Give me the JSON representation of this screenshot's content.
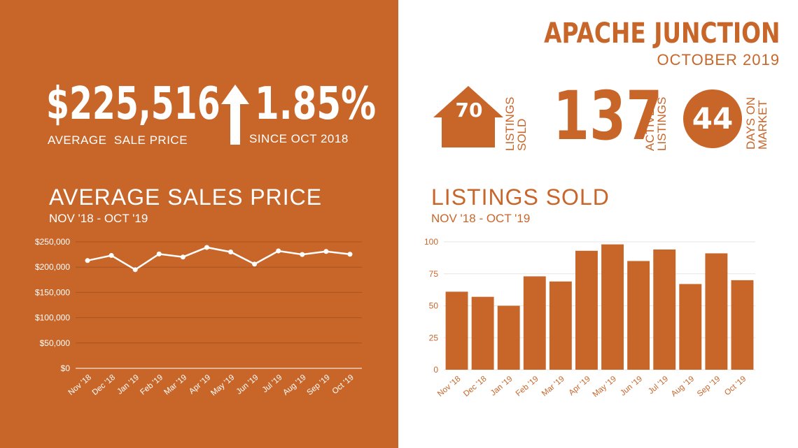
{
  "header": {
    "city": "APACHE JUNCTION",
    "period": "OCTOBER 2019"
  },
  "stats": {
    "avg_price_value": "$225,516",
    "avg_price_label": "AVERAGE  SALE PRICE",
    "change_value": "1.85%",
    "change_label": "SINCE OCT 2018",
    "change_direction": "up",
    "listings_sold_value": "70",
    "listings_sold_label_1": "LISTINGS",
    "listings_sold_label_2": "SOLD",
    "active_listings_value": "137",
    "active_listings_label_1": "ACTIVE",
    "active_listings_label_2": "LISTINGS",
    "days_on_market_value": "44",
    "days_on_market_label_1": "DAYS ON",
    "days_on_market_label_2": "MARKET"
  },
  "icons": {
    "arrow": "arrow-up-icon",
    "house": "house-icon",
    "circle": "circle-badge-icon"
  },
  "colors": {
    "brand_orange": "#c8662a",
    "white": "#ffffff"
  },
  "chart_data": [
    {
      "type": "line",
      "title": "AVERAGE SALES PRICE",
      "subtitle": "NOV '18 - OCT '19",
      "categories": [
        "Nov '18",
        "Dec '18",
        "Jan '19",
        "Feb '19",
        "Mar '19",
        "Apr '19",
        "May '19",
        "Jun '19",
        "Jul '19",
        "Aug '19",
        "Sep '19",
        "Oct '19"
      ],
      "values": [
        213000,
        223000,
        195000,
        226000,
        220000,
        239000,
        230000,
        206000,
        232000,
        225000,
        231000,
        225500
      ],
      "yticks": [
        "$0",
        "$50,000",
        "$100,000",
        "$150,000",
        "$200,000",
        "$250,000"
      ],
      "ylim": [
        0,
        250000
      ],
      "grid": true
    },
    {
      "type": "bar",
      "title": "LISTINGS SOLD",
      "subtitle": "NOV '18 - OCT '19",
      "categories": [
        "Nov '18",
        "Dec '18",
        "Jan '19",
        "Feb '19",
        "Mar '19",
        "Apr '19",
        "May '19",
        "Jun '19",
        "Jul '19",
        "Aug '19",
        "Sep '19",
        "Oct '19"
      ],
      "values": [
        61,
        57,
        50,
        73,
        69,
        93,
        98,
        85,
        94,
        67,
        91,
        70
      ],
      "yticks": [
        "0",
        "25",
        "50",
        "75",
        "100"
      ],
      "ylim": [
        0,
        100
      ],
      "grid": true
    }
  ]
}
